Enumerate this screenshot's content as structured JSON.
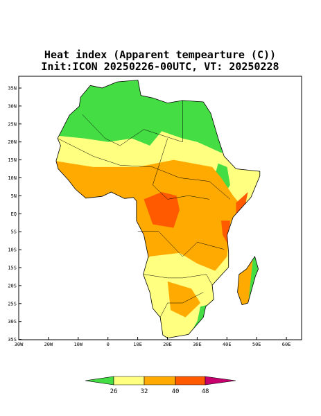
{
  "header": {
    "title": "Heat index (Apparent tempearture (C))",
    "subtitle": "Init:ICON 20250226-00UTC, VT: 20250228"
  },
  "map": {
    "lat_labels": [
      "35N",
      "30N",
      "25N",
      "20N",
      "15N",
      "10N",
      "5N",
      "EQ",
      "5S",
      "10S",
      "15S",
      "20S",
      "25S",
      "30S",
      "35S"
    ],
    "lon_labels": [
      "30W",
      "20W",
      "10W",
      "0",
      "10E",
      "20E",
      "30E",
      "40E",
      "50E",
      "60E"
    ]
  },
  "colorbar": {
    "labels": [
      "26",
      "32",
      "40",
      "48"
    ],
    "colors": [
      "#44dd44",
      "#ffff80",
      "#ffaa00",
      "#ff5a00",
      "#c8006e"
    ]
  }
}
